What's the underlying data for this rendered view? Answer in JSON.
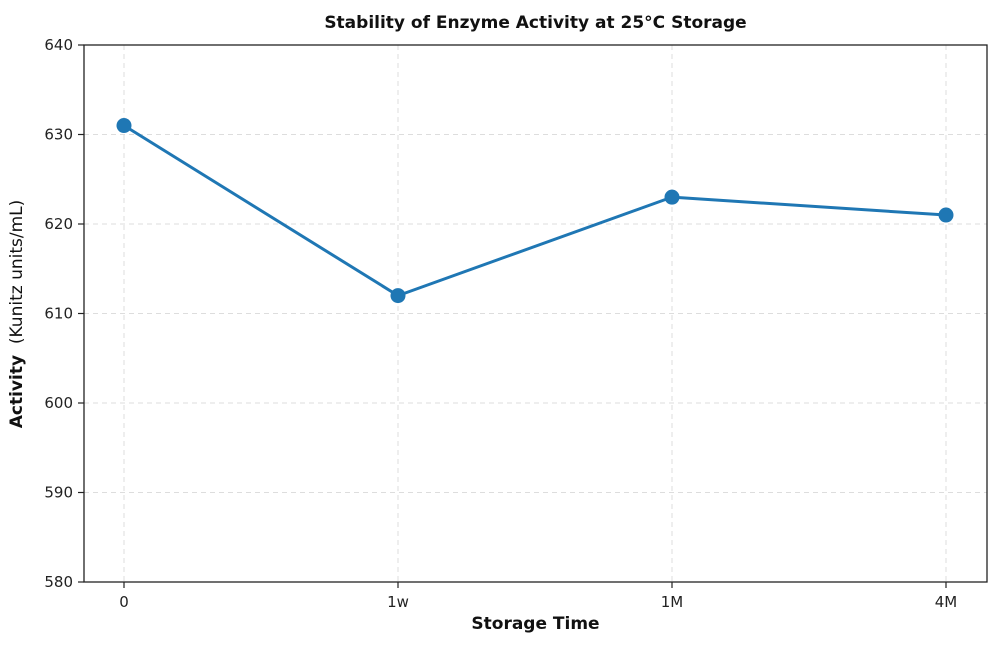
{
  "chart_data": {
    "type": "line",
    "title": "Stability of Enzyme Activity at 25°C Storage",
    "xlabel": "Storage Time",
    "ylabel": "Activity  (Kunitz units/mL)",
    "ylabel_parts": {
      "main": "Activity",
      "unit": "(Kunitz units/mL)"
    },
    "categories": [
      "0",
      "1w",
      "1M",
      "4M"
    ],
    "series": [
      {
        "name": "Activity",
        "values": [
          631,
          612,
          623,
          621
        ],
        "color": "#1f77b4",
        "marker": "circle"
      }
    ],
    "ylim": [
      580,
      640
    ],
    "yticks": [
      580,
      590,
      600,
      610,
      620,
      630,
      640
    ],
    "grid": true,
    "grid_style": "dashed",
    "legend": null
  }
}
